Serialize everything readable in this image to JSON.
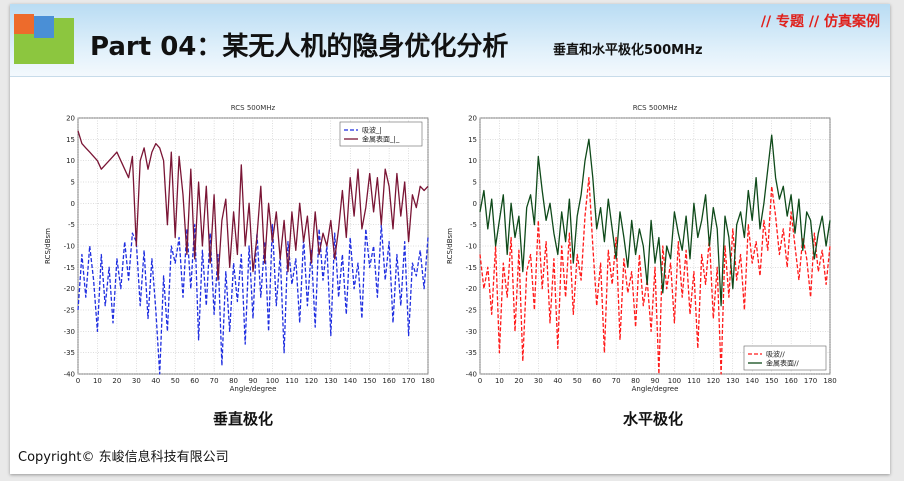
{
  "header": {
    "title": "Part 04：某无人机的隐身优化分析",
    "subtitle": "垂直和水平极化500MHz",
    "tag": "// 专题 // 仿真案例"
  },
  "captions": {
    "left": "垂直极化",
    "right": "水平极化"
  },
  "copyright": "Copyright© 东峻信息科技有限公司",
  "colors": {
    "absorb_v": "#1f2ee0",
    "metal_v": "#7a1535",
    "absorb_h": "#ff1a1a",
    "metal_h": "#0f4a1a"
  },
  "chart_data": [
    {
      "type": "line",
      "title": "RCS 500MHz",
      "xlabel": "Angle/degree",
      "ylabel": "RCS/dBsm",
      "xlim": [
        0,
        180
      ],
      "ylim": [
        -40,
        20
      ],
      "xticks": [
        0,
        10,
        20,
        30,
        40,
        50,
        60,
        70,
        80,
        90,
        100,
        110,
        120,
        130,
        140,
        150,
        160,
        170,
        180
      ],
      "yticks": [
        20,
        15,
        10,
        5,
        0,
        -5,
        -10,
        -15,
        -20,
        -25,
        -30,
        -35,
        -40
      ],
      "grid": true,
      "legend_position": "top-right",
      "series": [
        {
          "name": "吸波_|",
          "style": "dashed",
          "x": [
            0,
            2,
            4,
            6,
            8,
            10,
            12,
            14,
            16,
            18,
            20,
            22,
            24,
            26,
            28,
            30,
            32,
            34,
            36,
            38,
            40,
            42,
            44,
            46,
            48,
            50,
            52,
            54,
            56,
            58,
            60,
            62,
            64,
            66,
            68,
            70,
            72,
            74,
            76,
            78,
            80,
            82,
            84,
            86,
            88,
            90,
            92,
            94,
            96,
            98,
            100,
            102,
            104,
            106,
            108,
            110,
            112,
            114,
            116,
            118,
            120,
            122,
            124,
            126,
            128,
            130,
            132,
            134,
            136,
            138,
            140,
            142,
            144,
            146,
            148,
            150,
            152,
            154,
            156,
            158,
            160,
            162,
            164,
            166,
            168,
            170,
            172,
            174,
            176,
            178,
            180
          ],
          "y": [
            -25,
            -12,
            -22,
            -10,
            -18,
            -30,
            -12,
            -24,
            -15,
            -28,
            -13,
            -20,
            -9,
            -18,
            -7,
            -9,
            -24,
            -11,
            -27,
            -13,
            -25,
            -40,
            -17,
            -30,
            -10,
            -14,
            -8,
            -22,
            -6,
            -20,
            -5,
            -32,
            -11,
            -24,
            -7,
            -26,
            -12,
            -38,
            -16,
            -30,
            -14,
            -23,
            -12,
            -33,
            -10,
            -27,
            -7,
            -22,
            -9,
            -30,
            -5,
            -24,
            -12,
            -35,
            -9,
            -19,
            -13,
            -28,
            -8,
            -24,
            -11,
            -29,
            -6,
            -18,
            -10,
            -31,
            -7,
            -22,
            -12,
            -26,
            -8,
            -20,
            -14,
            -27,
            -6,
            -15,
            -10,
            -22,
            -5,
            -18,
            -9,
            -28,
            -12,
            -24,
            -9,
            -31,
            -14,
            -17,
            -11,
            -20,
            -8
          ]
        },
        {
          "name": "金属表面_|_",
          "style": "solid",
          "x": [
            0,
            2,
            4,
            6,
            8,
            10,
            12,
            14,
            16,
            18,
            20,
            22,
            24,
            26,
            28,
            30,
            32,
            34,
            36,
            38,
            40,
            42,
            44,
            46,
            48,
            50,
            52,
            54,
            56,
            58,
            60,
            62,
            64,
            66,
            68,
            70,
            72,
            74,
            76,
            78,
            80,
            82,
            84,
            86,
            88,
            90,
            92,
            94,
            96,
            98,
            100,
            102,
            104,
            106,
            108,
            110,
            112,
            114,
            116,
            118,
            120,
            122,
            124,
            126,
            128,
            130,
            132,
            134,
            136,
            138,
            140,
            142,
            144,
            146,
            148,
            150,
            152,
            154,
            156,
            158,
            160,
            162,
            164,
            166,
            168,
            170,
            172,
            174,
            176,
            178,
            180
          ],
          "y": [
            17,
            14,
            13,
            12,
            11,
            10,
            8,
            9,
            10,
            11,
            12,
            10,
            8,
            6,
            11,
            -10,
            10,
            13,
            8,
            12,
            14,
            13,
            10,
            -5,
            12,
            -8,
            11,
            2,
            -12,
            8,
            -13,
            5,
            -10,
            4,
            -14,
            2,
            -18,
            -4,
            1,
            -15,
            -2,
            -12,
            9,
            -10,
            0,
            -16,
            -8,
            4,
            -14,
            0,
            -9,
            -2,
            -13,
            -4,
            -16,
            -2,
            -11,
            0,
            -9,
            -3,
            -14,
            -2,
            -12,
            -7,
            -10,
            -4,
            -13,
            -6,
            3,
            -8,
            6,
            -3,
            8,
            -6,
            -1,
            7,
            -2,
            6,
            -5,
            8,
            4,
            -6,
            7,
            -3,
            5,
            -9,
            2,
            -1,
            4,
            3,
            4
          ]
        }
      ]
    },
    {
      "type": "line",
      "title": "RCS 500MHz",
      "xlabel": "Angle/degree",
      "ylabel": "RCS/dBsm",
      "xlim": [
        0,
        180
      ],
      "ylim": [
        -40,
        20
      ],
      "xticks": [
        0,
        10,
        20,
        30,
        40,
        50,
        60,
        70,
        80,
        90,
        100,
        110,
        120,
        130,
        140,
        150,
        160,
        170,
        180
      ],
      "yticks": [
        20,
        15,
        10,
        5,
        0,
        -5,
        -10,
        -15,
        -20,
        -25,
        -30,
        -35,
        -40
      ],
      "grid": true,
      "legend_position": "bottom-right",
      "series": [
        {
          "name": "吸波//",
          "style": "dashed",
          "x": [
            0,
            2,
            4,
            6,
            8,
            10,
            12,
            14,
            16,
            18,
            20,
            22,
            24,
            26,
            28,
            30,
            32,
            34,
            36,
            38,
            40,
            42,
            44,
            46,
            48,
            50,
            52,
            54,
            56,
            58,
            60,
            62,
            64,
            66,
            68,
            70,
            72,
            74,
            76,
            78,
            80,
            82,
            84,
            86,
            88,
            90,
            92,
            94,
            96,
            98,
            100,
            102,
            104,
            106,
            108,
            110,
            112,
            114,
            116,
            118,
            120,
            122,
            124,
            126,
            128,
            130,
            132,
            134,
            136,
            138,
            140,
            142,
            144,
            146,
            148,
            150,
            152,
            154,
            156,
            158,
            160,
            162,
            164,
            166,
            168,
            170,
            172,
            174,
            176,
            178,
            180
          ],
          "y": [
            -12,
            -20,
            -15,
            -26,
            -10,
            -35,
            -14,
            -22,
            -8,
            -30,
            -11,
            -37,
            -16,
            -12,
            -25,
            -4,
            -20,
            -9,
            -28,
            -13,
            -34,
            -10,
            -22,
            -7,
            -26,
            -12,
            -18,
            -3,
            6,
            -10,
            -24,
            -14,
            -35,
            -11,
            -19,
            -8,
            -32,
            -13,
            -21,
            -16,
            -29,
            -12,
            -24,
            -18,
            -30,
            -15,
            -40,
            -10,
            -20,
            -14,
            -28,
            -9,
            -22,
            -11,
            -26,
            -16,
            -34,
            -12,
            -19,
            -8,
            -27,
            -15,
            -40,
            -10,
            -22,
            -6,
            -18,
            -12,
            -25,
            -5,
            -14,
            -9,
            -17,
            -4,
            -11,
            4,
            -3,
            -12,
            -6,
            -15,
            -2,
            -10,
            -18,
            -8,
            -13,
            -22,
            -7,
            -16,
            -11,
            -19,
            -10
          ]
        },
        {
          "name": "金属表面//",
          "style": "solid",
          "x": [
            0,
            2,
            4,
            6,
            8,
            10,
            12,
            14,
            16,
            18,
            20,
            22,
            24,
            26,
            28,
            30,
            32,
            34,
            36,
            38,
            40,
            42,
            44,
            46,
            48,
            50,
            52,
            54,
            56,
            58,
            60,
            62,
            64,
            66,
            68,
            70,
            72,
            74,
            76,
            78,
            80,
            82,
            84,
            86,
            88,
            90,
            92,
            94,
            96,
            98,
            100,
            102,
            104,
            106,
            108,
            110,
            112,
            114,
            116,
            118,
            120,
            122,
            124,
            126,
            128,
            130,
            132,
            134,
            136,
            138,
            140,
            142,
            144,
            146,
            148,
            150,
            152,
            154,
            156,
            158,
            160,
            162,
            164,
            166,
            168,
            170,
            172,
            174,
            176,
            178,
            180
          ],
          "y": [
            -2,
            3,
            -6,
            1,
            -10,
            -4,
            2,
            -12,
            0,
            -8,
            -3,
            -16,
            -1,
            2,
            -5,
            11,
            3,
            -4,
            0,
            -7,
            -12,
            -2,
            -9,
            1,
            -14,
            -3,
            2,
            10,
            15,
            6,
            -6,
            -1,
            -9,
            1,
            -6,
            -13,
            -2,
            -8,
            -15,
            -4,
            -12,
            -6,
            -10,
            -19,
            -4,
            -14,
            -8,
            -21,
            -10,
            -13,
            -2,
            -7,
            -11,
            -3,
            -13,
            0,
            -8,
            -4,
            2,
            -10,
            -1,
            -6,
            -24,
            -3,
            -8,
            -20,
            -5,
            -2,
            -8,
            3,
            -4,
            6,
            -6,
            0,
            8,
            16,
            6,
            1,
            4,
            -3,
            2,
            -7,
            1,
            -11,
            -2,
            -4,
            -13,
            -7,
            -3,
            -10,
            -4
          ]
        }
      ]
    }
  ]
}
